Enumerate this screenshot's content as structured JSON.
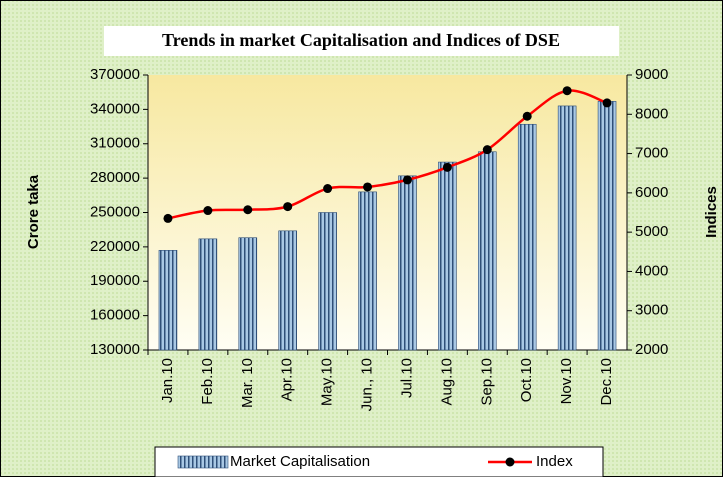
{
  "chart_data": {
    "type": "bar",
    "title": "Trends in market Capitalisation and Indices of DSE",
    "ylabel": "Crore taka",
    "y2label": "Indices",
    "categories": [
      "Jan.10",
      "Feb.10",
      "Mar. 10",
      "Apr.10",
      "May.10",
      "Jun., 10",
      "Jul.10",
      "Aug.10",
      "Sep.10",
      "Oct.10",
      "Nov.10",
      "Dec.10"
    ],
    "series": [
      {
        "name": "Market Capitalisation",
        "type": "bar",
        "color": "#8fb4d6",
        "values": [
          217000,
          227000,
          228000,
          234000,
          250000,
          268000,
          282000,
          294000,
          303000,
          327000,
          343000,
          347000
        ]
      },
      {
        "name": "Index",
        "type": "line",
        "axis": "y2",
        "color": "#ff0000",
        "values": [
          5350,
          5550,
          5570,
          5650,
          6110,
          6150,
          6330,
          6650,
          7100,
          7950,
          8600,
          8290
        ]
      }
    ],
    "ylim": [
      130000,
      370000
    ],
    "yticks": [
      130000,
      160000,
      190000,
      220000,
      250000,
      280000,
      310000,
      340000,
      370000
    ],
    "y2lim": [
      2000,
      9000
    ],
    "y2ticks": [
      2000,
      3000,
      4000,
      5000,
      6000,
      7000,
      8000,
      9000
    ],
    "legend": "bottom"
  }
}
